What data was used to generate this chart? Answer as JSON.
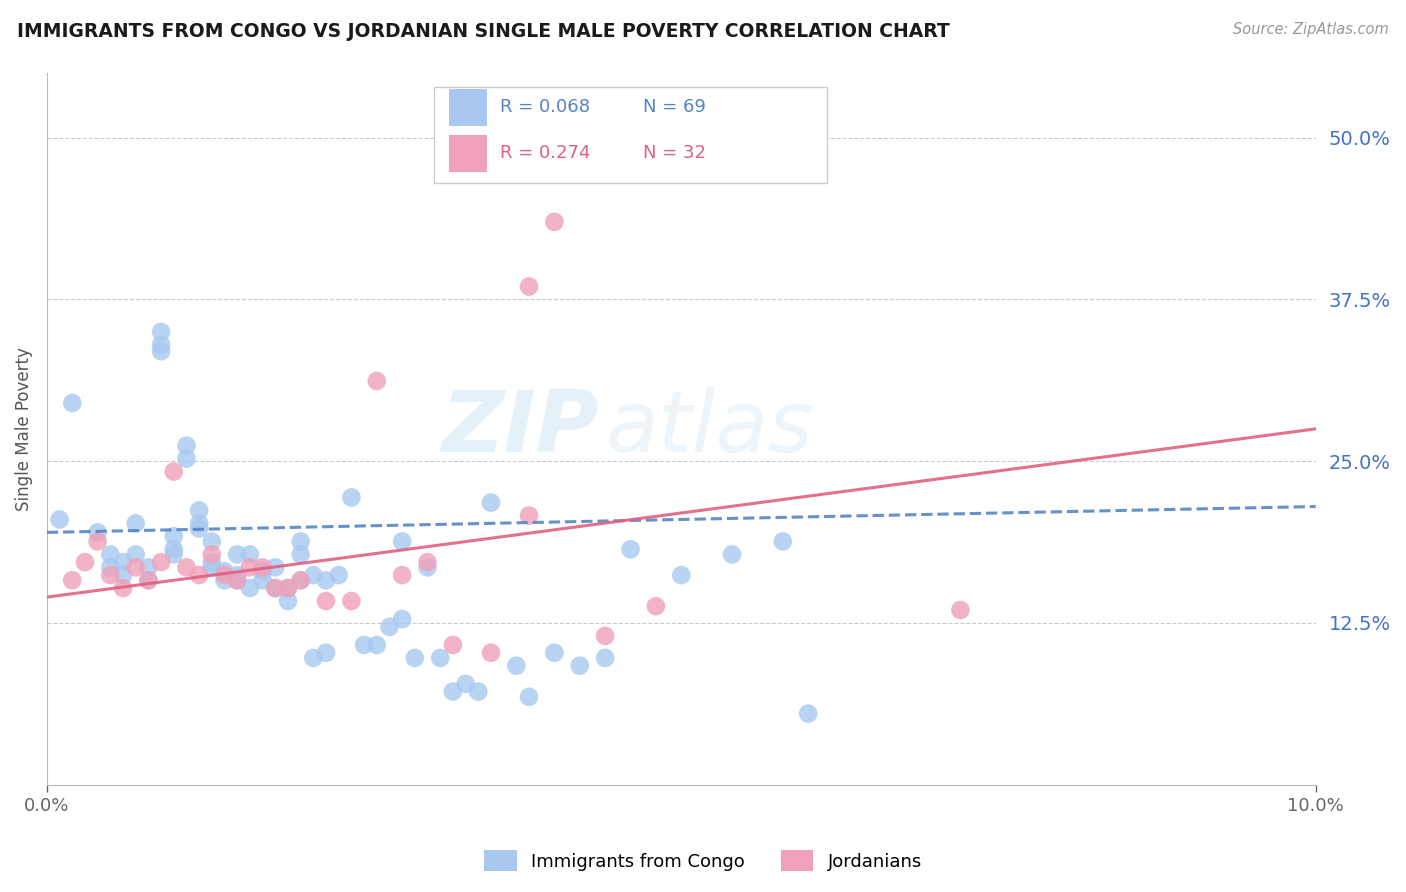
{
  "title": "IMMIGRANTS FROM CONGO VS JORDANIAN SINGLE MALE POVERTY CORRELATION CHART",
  "source": "Source: ZipAtlas.com",
  "ylabel": "Single Male Poverty",
  "xlim": [
    0.0,
    0.1
  ],
  "ylim": [
    0.0,
    0.55
  ],
  "xtick_labels": [
    "0.0%",
    "10.0%"
  ],
  "xtick_positions": [
    0.0,
    0.1
  ],
  "ytick_labels": [
    "12.5%",
    "25.0%",
    "37.5%",
    "50.0%"
  ],
  "ytick_positions": [
    0.125,
    0.25,
    0.375,
    0.5
  ],
  "background_color": "#ffffff",
  "grid_color": "#cccccc",
  "congo_color": "#a8c8f0",
  "jordan_color": "#f0a0b8",
  "congo_line_color": "#5585c5",
  "jordan_line_color": "#e06080",
  "legend_label_1": "Immigrants from Congo",
  "legend_label_2": "Jordanians",
  "R1": "0.068",
  "N1": "69",
  "R2": "0.274",
  "N2": "32",
  "watermark_zip": "ZIP",
  "watermark_atlas": "atlas",
  "congo_scatter_x": [
    0.002,
    0.004,
    0.005,
    0.005,
    0.006,
    0.006,
    0.007,
    0.007,
    0.008,
    0.008,
    0.009,
    0.009,
    0.009,
    0.01,
    0.01,
    0.01,
    0.011,
    0.011,
    0.012,
    0.012,
    0.012,
    0.013,
    0.013,
    0.013,
    0.014,
    0.014,
    0.015,
    0.015,
    0.015,
    0.016,
    0.016,
    0.017,
    0.017,
    0.018,
    0.018,
    0.019,
    0.019,
    0.02,
    0.02,
    0.02,
    0.021,
    0.021,
    0.022,
    0.022,
    0.023,
    0.024,
    0.025,
    0.026,
    0.027,
    0.028,
    0.028,
    0.029,
    0.03,
    0.031,
    0.032,
    0.033,
    0.034,
    0.035,
    0.037,
    0.038,
    0.04,
    0.042,
    0.044,
    0.046,
    0.05,
    0.054,
    0.058,
    0.06,
    0.001
  ],
  "congo_scatter_y": [
    0.295,
    0.195,
    0.168,
    0.178,
    0.162,
    0.172,
    0.178,
    0.202,
    0.158,
    0.168,
    0.335,
    0.34,
    0.35,
    0.178,
    0.182,
    0.192,
    0.252,
    0.262,
    0.198,
    0.202,
    0.212,
    0.168,
    0.172,
    0.188,
    0.158,
    0.165,
    0.158,
    0.162,
    0.178,
    0.152,
    0.178,
    0.158,
    0.165,
    0.152,
    0.168,
    0.142,
    0.152,
    0.158,
    0.178,
    0.188,
    0.098,
    0.162,
    0.102,
    0.158,
    0.162,
    0.222,
    0.108,
    0.108,
    0.122,
    0.188,
    0.128,
    0.098,
    0.168,
    0.098,
    0.072,
    0.078,
    0.072,
    0.218,
    0.092,
    0.068,
    0.102,
    0.092,
    0.098,
    0.182,
    0.162,
    0.178,
    0.188,
    0.055,
    0.205
  ],
  "jordan_scatter_x": [
    0.002,
    0.003,
    0.004,
    0.005,
    0.006,
    0.007,
    0.008,
    0.009,
    0.01,
    0.011,
    0.012,
    0.013,
    0.014,
    0.015,
    0.016,
    0.017,
    0.018,
    0.019,
    0.02,
    0.022,
    0.024,
    0.026,
    0.028,
    0.03,
    0.032,
    0.035,
    0.038,
    0.04,
    0.044,
    0.048,
    0.072,
    0.038
  ],
  "jordan_scatter_y": [
    0.158,
    0.172,
    0.188,
    0.162,
    0.152,
    0.168,
    0.158,
    0.172,
    0.242,
    0.168,
    0.162,
    0.178,
    0.162,
    0.158,
    0.168,
    0.168,
    0.152,
    0.152,
    0.158,
    0.142,
    0.142,
    0.312,
    0.162,
    0.172,
    0.108,
    0.102,
    0.385,
    0.435,
    0.115,
    0.138,
    0.135,
    0.208
  ],
  "congo_trend_x": [
    0.0,
    0.1
  ],
  "congo_trend_y": [
    0.195,
    0.215
  ],
  "jordan_trend_x": [
    0.0,
    0.1
  ],
  "jordan_trend_y": [
    0.145,
    0.275
  ]
}
